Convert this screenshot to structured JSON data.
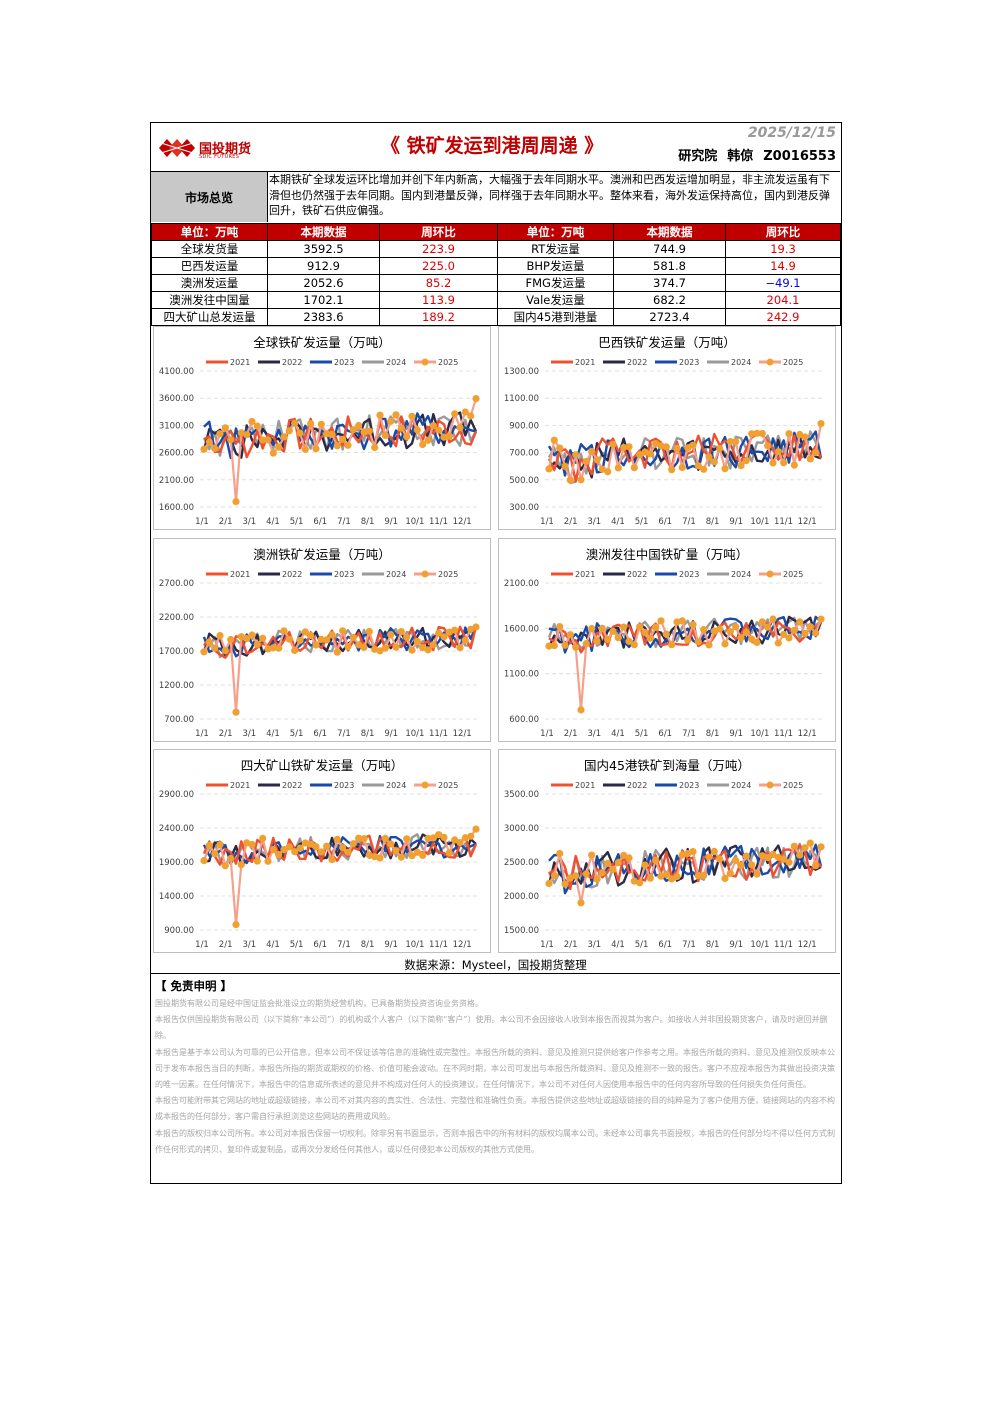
{
  "header": {
    "logo_text": "国投期货",
    "logo_sub": "SDIC FUTURES",
    "title": "《 铁矿发运到港周周递 》",
    "date": "2025/12/15",
    "dept": "研究院",
    "author": "韩倞",
    "license": "Z0016553"
  },
  "overview": {
    "label": "市场总览",
    "text": "本期铁矿全球发运环比增加并创下年内新高，大幅强于去年同期水平。澳洲和巴西发运增加明显，非主流发运虽有下滑但也仍然强于去年同期。国内到港量反弹，同样强于去年同期水平。整体来看，海外发运保持高位，国内到港反弹回升，铁矿石供应偏强。"
  },
  "summary": {
    "headers": [
      "单位：万吨",
      "本期数据",
      "周环比",
      "单位：万吨",
      "本期数据",
      "周环比"
    ],
    "rows": [
      [
        "全球发货量",
        "3592.5",
        "223.9",
        "RT发运量",
        "744.9",
        "19.3"
      ],
      [
        "巴西发运量",
        "912.9",
        "225.0",
        "BHP发运量",
        "581.8",
        "14.9"
      ],
      [
        "澳洲发运量",
        "2052.6",
        "85.2",
        "FMG发运量",
        "374.7",
        "−49.1"
      ],
      [
        "澳洲发往中国量",
        "1702.1",
        "113.9",
        "Vale发运量",
        "682.2",
        "204.1"
      ],
      [
        "四大矿山总发运量",
        "2383.6",
        "189.2",
        "国内45港到港量",
        "2723.4",
        "242.9"
      ]
    ]
  },
  "legend": {
    "years": [
      "2021",
      "2022",
      "2023",
      "2024",
      "2025"
    ],
    "colors": [
      "#f0502d",
      "#2a2a48",
      "#1a4aa8",
      "#9a9a9a",
      "#f6a08a"
    ],
    "dot_color": "#f0a030"
  },
  "chart_data": [
    {
      "type": "line",
      "title": "全球铁矿发运量（万吨）",
      "ylim": [
        1600,
        4100
      ],
      "yticks": [
        "4100.00",
        "3600.00",
        "3100.00",
        "2600.00",
        "2100.00",
        "1600.00"
      ],
      "categories": [
        "1/1",
        "2/1",
        "3/1",
        "4/1",
        "5/1",
        "6/1",
        "7/1",
        "8/1",
        "9/1",
        "10/1",
        "11/1",
        "12/1"
      ],
      "base": 2950,
      "amp": 320,
      "dip": 1700,
      "series": [
        {
          "name": "2021"
        },
        {
          "name": "2022"
        },
        {
          "name": "2023"
        },
        {
          "name": "2024"
        },
        {
          "name": "2025",
          "values_last": 3592.5
        }
      ]
    },
    {
      "type": "line",
      "title": "巴西铁矿发运量（万吨）",
      "ylim": [
        300,
        1300
      ],
      "yticks": [
        "1300.00",
        "1100.00",
        "900.00",
        "700.00",
        "500.00",
        "300.00"
      ],
      "categories": [
        "1/1",
        "2/1",
        "3/1",
        "4/1",
        "5/1",
        "6/1",
        "7/1",
        "8/1",
        "9/1",
        "10/1",
        "11/1",
        "12/1"
      ],
      "base": 700,
      "amp": 130,
      "dip": 500,
      "series": [
        {
          "name": "2021"
        },
        {
          "name": "2022"
        },
        {
          "name": "2023"
        },
        {
          "name": "2024"
        },
        {
          "name": "2025",
          "values_last": 912.9
        }
      ]
    },
    {
      "type": "line",
      "title": "澳洲铁矿发运量（万吨）",
      "ylim": [
        700,
        2700
      ],
      "yticks": [
        "2700.00",
        "2200.00",
        "1700.00",
        "1200.00",
        "700.00"
      ],
      "categories": [
        "1/1",
        "2/1",
        "3/1",
        "4/1",
        "5/1",
        "6/1",
        "7/1",
        "8/1",
        "9/1",
        "10/1",
        "11/1",
        "12/1"
      ],
      "base": 1850,
      "amp": 170,
      "dip": 800,
      "series": [
        {
          "name": "2021"
        },
        {
          "name": "2022"
        },
        {
          "name": "2023"
        },
        {
          "name": "2024"
        },
        {
          "name": "2025",
          "values_last": 2052.6
        }
      ]
    },
    {
      "type": "line",
      "title": "澳洲发往中国铁矿量（万吨）",
      "ylim": [
        600,
        2100
      ],
      "yticks": [
        "2100.00",
        "1600.00",
        "1100.00",
        "600.00"
      ],
      "categories": [
        "1/1",
        "2/1",
        "3/1",
        "4/1",
        "5/1",
        "6/1",
        "7/1",
        "8/1",
        "9/1",
        "10/1",
        "11/1",
        "12/1"
      ],
      "base": 1550,
      "amp": 150,
      "dip": 700,
      "series": [
        {
          "name": "2021"
        },
        {
          "name": "2022"
        },
        {
          "name": "2023"
        },
        {
          "name": "2024"
        },
        {
          "name": "2025",
          "values_last": 1702.1
        }
      ]
    },
    {
      "type": "line",
      "title": "四大矿山铁矿发运量（万吨）",
      "ylim": [
        900,
        2900
      ],
      "yticks": [
        "2900.00",
        "2400.00",
        "1900.00",
        "1400.00",
        "900.00"
      ],
      "categories": [
        "1/1",
        "2/1",
        "3/1",
        "4/1",
        "5/1",
        "6/1",
        "7/1",
        "8/1",
        "9/1",
        "10/1",
        "11/1",
        "12/1"
      ],
      "base": 2100,
      "amp": 180,
      "dip": 980,
      "series": [
        {
          "name": "2021"
        },
        {
          "name": "2022"
        },
        {
          "name": "2023"
        },
        {
          "name": "2024"
        },
        {
          "name": "2025",
          "values_last": 2383.6
        }
      ]
    },
    {
      "type": "line",
      "title": "国内45港铁矿到海量（万吨）",
      "ylim": [
        1500,
        3500
      ],
      "yticks": [
        "3500.00",
        "3000.00",
        "2500.00",
        "2000.00",
        "1500.00"
      ],
      "categories": [
        "1/1",
        "2/1",
        "3/1",
        "4/1",
        "5/1",
        "6/1",
        "7/1",
        "8/1",
        "9/1",
        "10/1",
        "11/1",
        "12/1"
      ],
      "base": 2450,
      "amp": 260,
      "dip": 1900,
      "series": [
        {
          "name": "2021"
        },
        {
          "name": "2022"
        },
        {
          "name": "2023"
        },
        {
          "name": "2024"
        },
        {
          "name": "2025",
          "values_last": 2723.4
        }
      ]
    }
  ],
  "source": "数据来源：Mysteel，国投期货整理",
  "disclaimer": {
    "title": "【 免责申明 】",
    "paragraphs": [
      "国投期货有限公司是经中国证监会批准设立的期货经营机构，已具备期货投资咨询业务资格。",
      "本报告仅供国投期货有限公司（以下简称“本公司”）的机构或个人客户（以下简称“客户”）使用。本公司不会因接收人收到本报告而视其为客户。如接收人并非国投期货客户，请及时退回并删除。",
      "本报告是基于本公司认为可靠的已公开信息，但本公司不保证该等信息的准确性或完整性。本报告所载的资料、意见及推测只提供给客户作参考之用。本报告所载的资料、意见及推测仅反映本公司于发布本报告当日的判断，本报告所指的期货或期权的价格、价值可能会波动。在不同时期，本公司可发出与本报告所载资料、意见及推测不一致的报告。客户不应视本报告为其做出投资决策的唯一因素。在任何情况下，本报告中的信息或所表述的意见并不构成对任何人的投资建议，在任何情况下，本公司不对任何人因使用本报告中的任何内容所导致的任何损失负任何责任。",
      "本报告可能附带其它网站的地址或超级链接，本公司不对其内容的真实性、合法性、完整性和准确性负责。本报告提供这些地址或超级链接的目的纯粹是为了客户使用方便，链接网站的内容不构成本报告的任何部分，客户需自行承担浏览这些网站的费用或风险。",
      "本报告的版权归本公司所有。本公司对本报告保留一切权利。除非另有书面显示，否则本报告中的所有材料的版权均属本公司。未经本公司事先书面授权，本报告的任何部分均不得以任何方式制作任何形式的拷贝、复印件或复制品，或再次分发给任何其他人，或以任何侵犯本公司版权的其他方式使用。"
    ]
  }
}
